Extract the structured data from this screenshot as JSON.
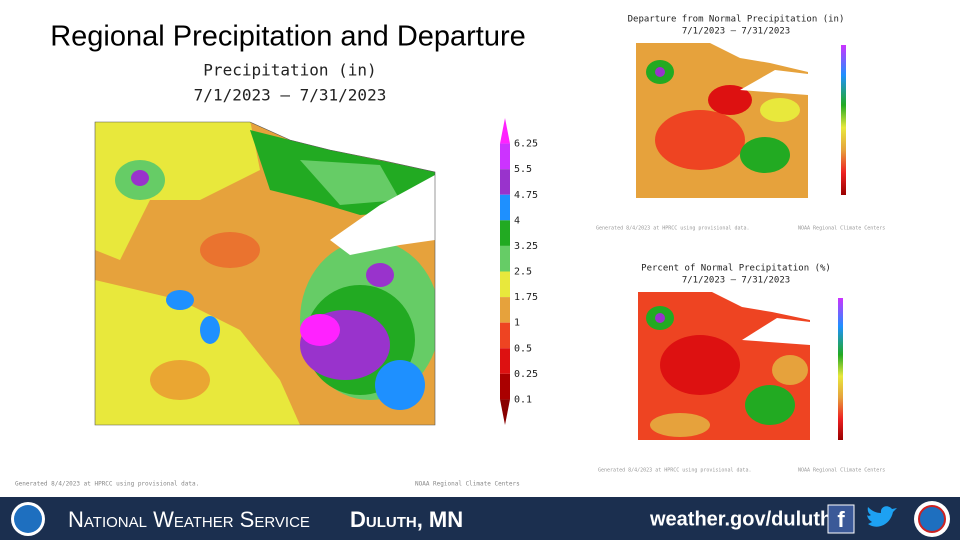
{
  "title": "Regional Precipitation and Departure",
  "main_map": {
    "title": "Precipitation (in)",
    "dates": "7/1/2023 – 7/31/2023",
    "legend_labels": [
      "6.25",
      "5.5",
      "4.75",
      "4",
      "3.25",
      "2.5",
      "1.75",
      "1",
      "0.5",
      "0.25",
      "0.1"
    ],
    "footer_left": "Generated 8/4/2023 at HPRCC using provisional data.",
    "footer_right": "NOAA Regional Climate Centers"
  },
  "departure_map": {
    "title": "Departure from Normal Precipitation (in)",
    "dates": "7/1/2023 – 7/31/2023",
    "footer_left": "Generated 8/4/2023 at HPRCC using provisional data.",
    "footer_right": "NOAA Regional Climate Centers"
  },
  "percent_map": {
    "title": "Percent of Normal Precipitation (%)",
    "dates": "7/1/2023 – 7/31/2023",
    "footer_left": "Generated 8/4/2023 at HPRCC using provisional data.",
    "footer_right": "NOAA Regional Climate Centers"
  },
  "footer": {
    "agency": "National Weather Service",
    "office": "Duluth, MN",
    "url": "weather.gov/duluth"
  }
}
